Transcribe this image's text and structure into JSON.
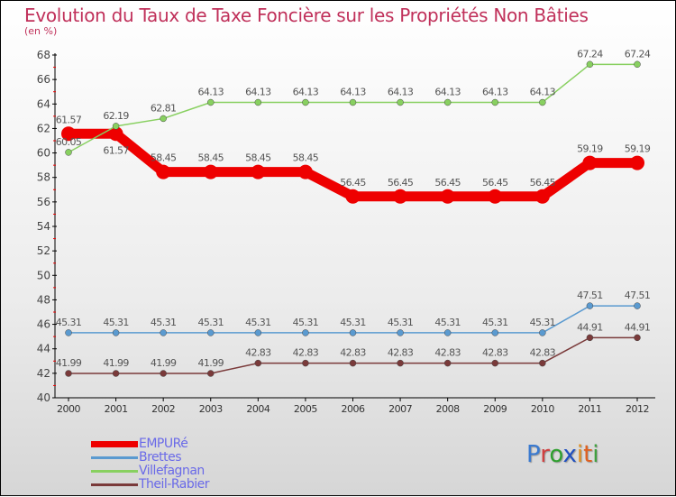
{
  "chart_data": {
    "type": "line",
    "title": "Evolution du Taux de Taxe Foncière sur les Propriétés Non Bâties",
    "subtitle": "(en %)",
    "x": [
      "2000",
      "2001",
      "2002",
      "2003",
      "2004",
      "2005",
      "2006",
      "2007",
      "2008",
      "2009",
      "2010",
      "2011",
      "2012"
    ],
    "ylim": [
      40,
      68
    ],
    "yticks": [
      40,
      42,
      44,
      46,
      48,
      50,
      52,
      54,
      56,
      58,
      60,
      62,
      64,
      66,
      68
    ],
    "series": [
      {
        "name": "EMPURé",
        "color": "#ee0000",
        "values": [
          61.57,
          61.57,
          58.45,
          58.45,
          58.45,
          58.45,
          56.45,
          56.45,
          56.45,
          56.45,
          56.45,
          59.19,
          59.19
        ]
      },
      {
        "name": "Brettes",
        "color": "#5a9ad0",
        "values": [
          45.31,
          45.31,
          45.31,
          45.31,
          45.31,
          45.31,
          45.31,
          45.31,
          45.31,
          45.31,
          45.31,
          47.51,
          47.51
        ]
      },
      {
        "name": "Villefagnan",
        "color": "#88d060",
        "values": [
          60.05,
          62.19,
          62.81,
          64.13,
          64.13,
          64.13,
          64.13,
          64.13,
          64.13,
          64.13,
          64.13,
          67.24,
          67.24
        ]
      },
      {
        "name": "Theil-Rabier",
        "color": "#7a3a3a",
        "values": [
          41.99,
          41.99,
          41.99,
          41.99,
          42.83,
          42.83,
          42.83,
          42.83,
          42.83,
          42.83,
          42.83,
          44.91,
          44.91
        ]
      }
    ],
    "legend_position": "bottom-left"
  },
  "logo": "Proxiti"
}
